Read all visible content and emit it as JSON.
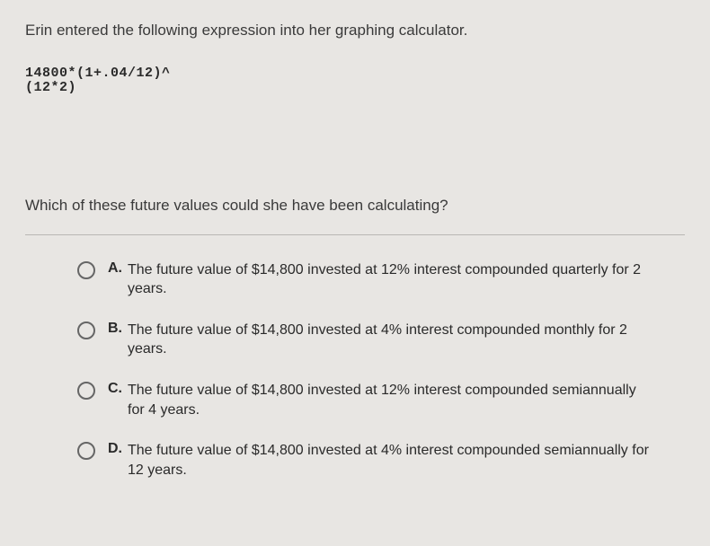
{
  "question": {
    "intro": "Erin entered the following expression into her graphing calculator.",
    "expression_line1": "14800*(1+.04/12)^",
    "expression_line2": "(12*2)",
    "followup": "Which of these future values could she have been calculating?"
  },
  "options": [
    {
      "letter": "A.",
      "text": "The future value of $14,800 invested at 12% interest compounded quarterly for 2 years."
    },
    {
      "letter": "B.",
      "text": "The future value of $14,800 invested at 4% interest compounded monthly for 2 years."
    },
    {
      "letter": "C.",
      "text": "The future value of $14,800 invested at 12% interest compounded semiannually for 4 years."
    },
    {
      "letter": "D.",
      "text": "The future value of $14,800 invested at 4% interest compounded semiannually for 12 years."
    }
  ],
  "colors": {
    "background": "#e8e6e3",
    "text_primary": "#3a3a3a",
    "text_option": "#2a2a2a",
    "divider": "#b8b6b3",
    "radio_border": "#666666"
  }
}
